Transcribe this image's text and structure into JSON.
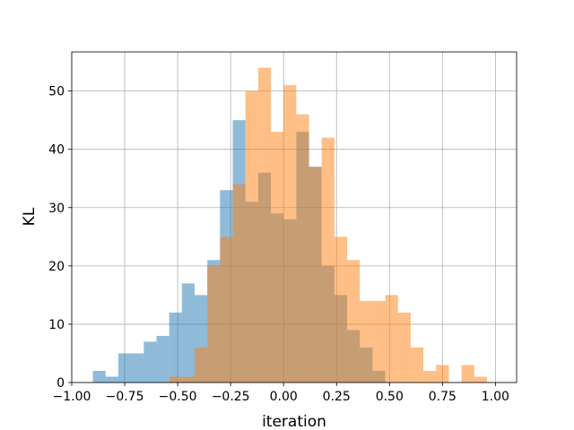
{
  "chart_data": {
    "type": "bar",
    "subtype": "overlapping-histogram",
    "title": "",
    "xlabel": "iteration",
    "ylabel": "KL",
    "xlim": [
      -1.0,
      1.1
    ],
    "ylim": [
      0,
      56.7
    ],
    "grid": true,
    "legend": "none",
    "x_ticks": [
      "−1.00",
      "−0.75",
      "−0.50",
      "−0.25",
      "0.00",
      "0.25",
      "0.50",
      "0.75",
      "1.00"
    ],
    "x_tick_values": [
      -1.0,
      -0.75,
      -0.5,
      -0.25,
      0.0,
      0.25,
      0.5,
      0.75,
      1.0
    ],
    "y_ticks": [
      "0",
      "10",
      "20",
      "30",
      "40",
      "50"
    ],
    "y_tick_values": [
      0,
      10,
      20,
      30,
      40,
      50
    ],
    "series": [
      {
        "color": "#1f77b4",
        "alpha": 0.5,
        "bin_start": -0.9,
        "bin_width": 0.06,
        "values": [
          2,
          1,
          5,
          5,
          7,
          8,
          12,
          17,
          15,
          21,
          33,
          45,
          31,
          36,
          29,
          28,
          43,
          37,
          20,
          15,
          9,
          6,
          2,
          0,
          0
        ]
      },
      {
        "color": "#ff7f0e",
        "alpha": 0.5,
        "bin_start": -0.54,
        "bin_width": 0.06,
        "values": [
          1,
          1,
          6,
          20,
          25,
          34,
          50,
          54,
          43,
          51,
          46,
          37,
          42,
          25,
          21,
          14,
          14,
          15,
          12,
          6,
          2,
          3,
          0,
          3,
          1
        ]
      }
    ]
  }
}
